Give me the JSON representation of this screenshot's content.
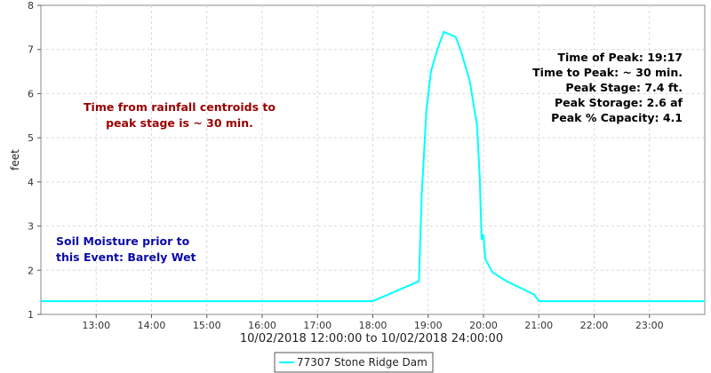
{
  "chart_data": {
    "type": "line",
    "xlabel": "10/02/2018 12:00:00 to 10/02/2018 24:00:00",
    "ylabel": "feet",
    "xlim": [
      "12:00",
      "24:00"
    ],
    "ylim": [
      1,
      8
    ],
    "grid": true,
    "legend_position": "bottom-center",
    "x_tick_labels": [
      "13:00",
      "14:00",
      "15:00",
      "16:00",
      "17:00",
      "18:00",
      "19:00",
      "20:00",
      "21:00",
      "22:00",
      "23:00"
    ],
    "y_tick_labels": [
      "1",
      "2",
      "3",
      "4",
      "5",
      "6",
      "7",
      "8"
    ],
    "series": [
      {
        "name": "77307 Stone Ridge Dam",
        "color": "#00ffff",
        "points": [
          [
            "12:00",
            1.3
          ],
          [
            "18:00",
            1.3
          ],
          [
            "18:50",
            1.75
          ],
          [
            "18:53",
            3.7
          ],
          [
            "18:58",
            5.6
          ],
          [
            "19:03",
            6.5
          ],
          [
            "19:10",
            7.0
          ],
          [
            "19:17",
            7.4
          ],
          [
            "19:30",
            7.28
          ],
          [
            "19:35",
            7.0
          ],
          [
            "19:45",
            6.3
          ],
          [
            "19:53",
            5.3
          ],
          [
            "19:56",
            4.1
          ],
          [
            "19:58",
            2.7
          ],
          [
            "20:00",
            2.8
          ],
          [
            "20:02",
            2.25
          ],
          [
            "20:10",
            1.95
          ],
          [
            "20:25",
            1.75
          ],
          [
            "20:55",
            1.45
          ],
          [
            "21:00",
            1.3
          ],
          [
            "24:00",
            1.3
          ]
        ]
      }
    ],
    "annotations": {
      "rainfall": [
        "Time from rainfall centroids to",
        "peak stage is ~ 30 min."
      ],
      "soil": [
        "Soil Moisture prior to",
        "this Event: Barely Wet"
      ],
      "stats": [
        "Time of Peak: 19:17",
        "Time to Peak: ~ 30 min.",
        "Peak Stage: 7.4 ft.",
        "Peak Storage: 2.6 af",
        "Peak % Capacity: 4.1"
      ]
    },
    "colors": {
      "rainfall_text": "#990000",
      "soil_text": "#0a0aa8",
      "stats_text": "#000000",
      "grid": "#d9d9d9"
    }
  }
}
